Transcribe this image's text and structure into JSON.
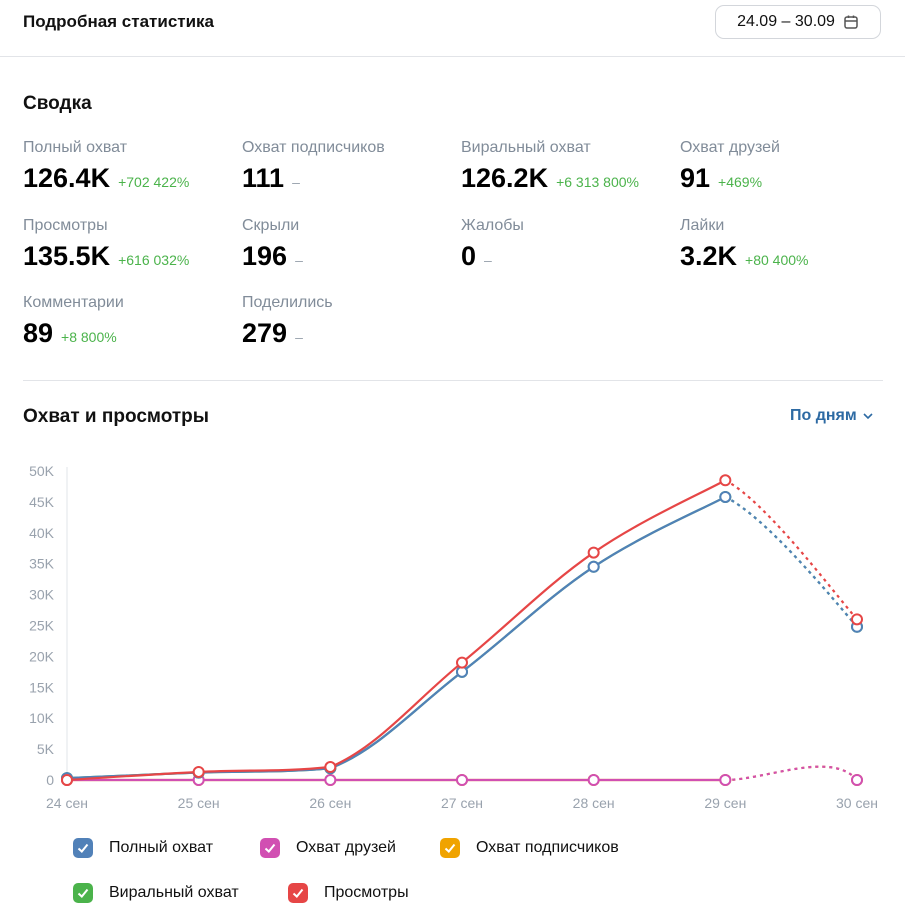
{
  "header": {
    "title": "Подробная статистика",
    "date_range": "24.09 – 30.09"
  },
  "summary": {
    "title": "Сводка",
    "stats": [
      {
        "label": "Полный охват",
        "value": "126.4K",
        "delta": "+702 422%"
      },
      {
        "label": "Охват подписчиков",
        "value": "111",
        "delta": "–"
      },
      {
        "label": "Виральный охват",
        "value": "126.2K",
        "delta": "+6 313 800%"
      },
      {
        "label": "Охват друзей",
        "value": "91",
        "delta": "+469%"
      },
      {
        "label": "Просмотры",
        "value": "135.5K",
        "delta": "+616 032%"
      },
      {
        "label": "Скрыли",
        "value": "196",
        "delta": "–"
      },
      {
        "label": "Жалобы",
        "value": "0",
        "delta": "–"
      },
      {
        "label": "Лайки",
        "value": "3.2K",
        "delta": "+80 400%"
      },
      {
        "label": "Комментарии",
        "value": "89",
        "delta": "+8 800%"
      },
      {
        "label": "Поделились",
        "value": "279",
        "delta": "–"
      }
    ]
  },
  "reach_views": {
    "title": "Охват и просмотры",
    "grouping": "По дням"
  },
  "legend": [
    {
      "label": "Полный охват",
      "color": "#5181b8"
    },
    {
      "label": "Охват друзей",
      "color": "#d14fb2"
    },
    {
      "label": "Охват подписчиков",
      "color": "#f0a300"
    },
    {
      "label": "Виральный охват",
      "color": "#4bb34b"
    },
    {
      "label": "Просмотры",
      "color": "#e64646"
    }
  ],
  "chart_data": {
    "type": "line",
    "categories": [
      "24 сен",
      "25 сен",
      "26 сен",
      "27 сен",
      "28 сен",
      "29 сен",
      "30 сен"
    ],
    "y_ticks": [
      "0",
      "5K",
      "10K",
      "15K",
      "20K",
      "25K",
      "30K",
      "35K",
      "40K",
      "45K",
      "50K"
    ],
    "ylim": [
      0,
      50000
    ],
    "dashed_last_segment": true,
    "series": [
      {
        "name": "Полный охват",
        "color": "#5181b8",
        "values": [
          300,
          1200,
          1900,
          17500,
          34500,
          45800,
          24800
        ]
      },
      {
        "name": "Виральный охват",
        "color": "#4bb34b",
        "values": [
          300,
          1200,
          1900,
          17500,
          34500,
          45800,
          24800
        ]
      },
      {
        "name": "Просмотры",
        "color": "#e64646",
        "values": [
          0,
          1300,
          2100,
          19000,
          36800,
          48500,
          26000
        ]
      },
      {
        "name": "Охват подписчиков",
        "color": "#f0a300",
        "values": [
          0,
          0,
          0,
          0,
          0,
          0,
          0
        ]
      },
      {
        "name": "Охват друзей",
        "color": "#d14fb2",
        "values": [
          0,
          0,
          0,
          0,
          0,
          0,
          0
        ]
      }
    ]
  }
}
